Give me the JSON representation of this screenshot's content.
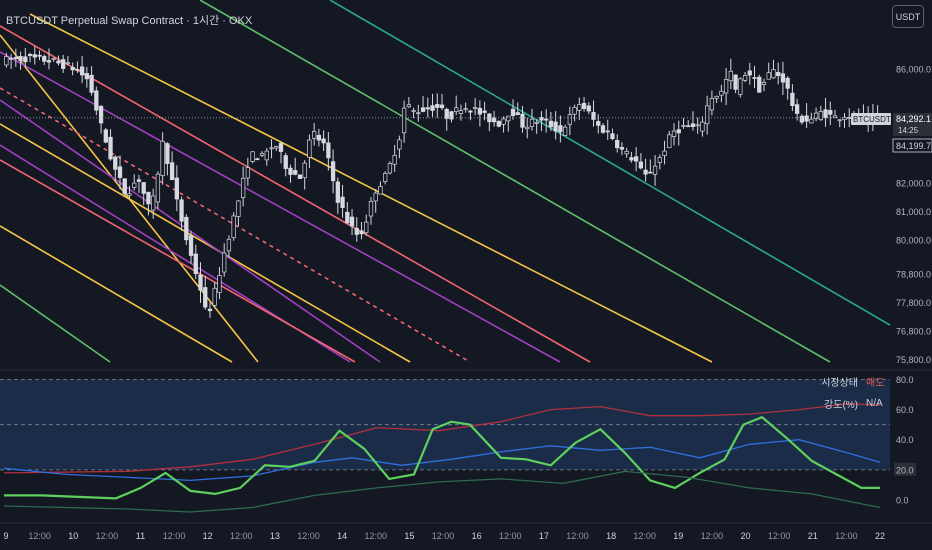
{
  "header": {
    "title": "BTCUSDT Perpetual Swap Contract · 1시간 · OKX",
    "currency": "USDT"
  },
  "price_tags": {
    "symbol": "BTCUSDT.P",
    "last": "84,292.1",
    "countdown": "14:25",
    "low": "84,199.7"
  },
  "indicator_table": {
    "rows": [
      {
        "key": "시장상태",
        "value": "매도",
        "color": "#e05a5a"
      },
      {
        "key": "강도(%)",
        "value": "N/A",
        "color": "#d1d4dc"
      }
    ]
  },
  "colors": {
    "background": "#141823",
    "candle": "#d6d9e0",
    "red_line": "#f06470",
    "yellow_line": "#f5c542",
    "purple_line": "#a040c0",
    "green_line": "#5fbf6a",
    "teal_line": "#2ba890",
    "osc_red": "#b0303c",
    "osc_blue": "#2f6fe0",
    "osc_green": "#5ed05e",
    "osc_darkgreen": "#2e6a4e"
  },
  "chart_data": [
    {
      "type": "candlestick",
      "title": "BTCUSDT Perpetual Swap Contract · 1시간 · OKX",
      "ylim": [
        75500,
        87800
      ],
      "yticks": [
        "86,000.0",
        "82,000.0",
        "81,000.0",
        "80,000.0",
        "78,800.0",
        "77,800.0",
        "76,800.0",
        "75,800.0"
      ],
      "ytick_values": [
        86000,
        82000,
        81000,
        80000,
        78800,
        77800,
        76800,
        75800
      ],
      "xticks": [
        "9",
        "12:00",
        "10",
        "12:00",
        "11",
        "12:00",
        "12",
        "12:00",
        "13",
        "12:00",
        "14",
        "12:00",
        "15",
        "12:00",
        "16",
        "12:00",
        "17",
        "12:00",
        "18",
        "12:00",
        "19",
        "12:00",
        "20",
        "12:00",
        "21",
        "12:00",
        "22"
      ],
      "price_path": [
        [
          0,
          86300
        ],
        [
          2,
          86400
        ],
        [
          4,
          86300
        ],
        [
          6,
          86000
        ],
        [
          7,
          85600
        ],
        [
          8,
          84000
        ],
        [
          9,
          82600
        ],
        [
          10,
          81600
        ],
        [
          11,
          82200
        ],
        [
          12,
          80900
        ],
        [
          13,
          83500
        ],
        [
          14,
          81500
        ],
        [
          15,
          79800
        ],
        [
          16,
          78300
        ],
        [
          16.5,
          77300
        ],
        [
          17,
          77900
        ],
        [
          17.5,
          78800
        ],
        [
          18,
          79700
        ],
        [
          19,
          81300
        ],
        [
          20,
          83000
        ],
        [
          21,
          82900
        ],
        [
          22,
          83400
        ],
        [
          23,
          82500
        ],
        [
          24,
          82200
        ],
        [
          25,
          83800
        ],
        [
          26,
          83300
        ],
        [
          27,
          81500
        ],
        [
          28,
          80500
        ],
        [
          28.8,
          80100
        ],
        [
          29.5,
          80900
        ],
        [
          30,
          81700
        ],
        [
          31,
          82300
        ],
        [
          32,
          83600
        ],
        [
          32.5,
          84900
        ],
        [
          33,
          84500
        ],
        [
          34,
          84600
        ],
        [
          35,
          84700
        ],
        [
          36,
          84300
        ],
        [
          37,
          84700
        ],
        [
          38,
          84600
        ],
        [
          39,
          84300
        ],
        [
          40,
          84100
        ],
        [
          41,
          84600
        ],
        [
          42,
          84000
        ],
        [
          43,
          84200
        ],
        [
          44,
          84100
        ],
        [
          45,
          83800
        ],
        [
          46,
          84500
        ],
        [
          46.5,
          84800
        ],
        [
          47,
          84600
        ],
        [
          48,
          84000
        ],
        [
          49,
          83700
        ],
        [
          50,
          83100
        ],
        [
          51,
          82800
        ],
        [
          51.7,
          82200
        ],
        [
          52,
          82300
        ],
        [
          53,
          82900
        ],
        [
          54,
          83800
        ],
        [
          55,
          84000
        ],
        [
          56,
          83900
        ],
        [
          56.5,
          84300
        ],
        [
          57,
          85000
        ],
        [
          58,
          85200
        ],
        [
          58.6,
          86000
        ],
        [
          59,
          85200
        ],
        [
          60,
          86000
        ],
        [
          61,
          85300
        ],
        [
          62,
          86000
        ],
        [
          63,
          85600
        ],
        [
          64,
          84300
        ],
        [
          65,
          84200
        ],
        [
          66,
          84500
        ],
        [
          67,
          84300
        ],
        [
          68,
          84400
        ],
        [
          69,
          84300
        ],
        [
          70,
          84200
        ],
        [
          70.5,
          84292.1
        ]
      ],
      "x_range": [
        0,
        70.5
      ]
    },
    {
      "type": "line",
      "title": "",
      "ylim": [
        -10,
        85
      ],
      "yticks": [
        "80.0",
        "60.0",
        "40.0",
        "20.0",
        "0.0"
      ],
      "ytick_values": [
        80,
        60,
        40,
        20,
        0
      ],
      "series": [
        {
          "color": "#b0303c",
          "x": [
            0,
            10,
            15,
            20,
            25,
            30,
            35,
            40,
            44,
            48,
            52,
            56,
            60,
            64,
            68,
            70.5
          ],
          "values": [
            18,
            19,
            22,
            27,
            37,
            48,
            46,
            52,
            60,
            62,
            56,
            56,
            57,
            60,
            64,
            63
          ]
        },
        {
          "color": "#2f6fe0",
          "x": [
            0,
            5,
            10,
            15,
            20,
            25,
            28,
            32,
            36,
            40,
            44,
            48,
            52,
            56,
            60,
            64,
            68,
            70.5
          ],
          "values": [
            21,
            17,
            15,
            13,
            16,
            25,
            28,
            23,
            27,
            32,
            36,
            33,
            35,
            28,
            37,
            40,
            31,
            25
          ]
        },
        {
          "color": "#5ed05e",
          "x": [
            0,
            3,
            6,
            9,
            11,
            13,
            15,
            17,
            19,
            21,
            23,
            25,
            27,
            29,
            31,
            33,
            34.5,
            36,
            37.5,
            40,
            42,
            44,
            46,
            48,
            50,
            52,
            54,
            56,
            58,
            59.5,
            61,
            63,
            65,
            67,
            69,
            70.5
          ],
          "values": [
            3,
            3,
            2,
            1,
            8,
            18,
            6,
            4,
            8,
            23,
            22,
            26,
            46,
            34,
            14,
            17,
            47,
            52,
            50,
            28,
            27,
            23,
            38,
            47,
            31,
            13,
            8,
            18,
            27,
            50,
            55,
            41,
            26,
            17,
            8,
            8
          ]
        },
        {
          "color": "#2e6a4e",
          "x": [
            0,
            10,
            15,
            20,
            25,
            30,
            35,
            40,
            45,
            50,
            55,
            60,
            65,
            70.5
          ],
          "values": [
            -4,
            -6,
            -8,
            -5,
            3,
            8,
            12,
            14,
            11,
            19,
            15,
            8,
            4,
            -5
          ]
        }
      ]
    }
  ]
}
